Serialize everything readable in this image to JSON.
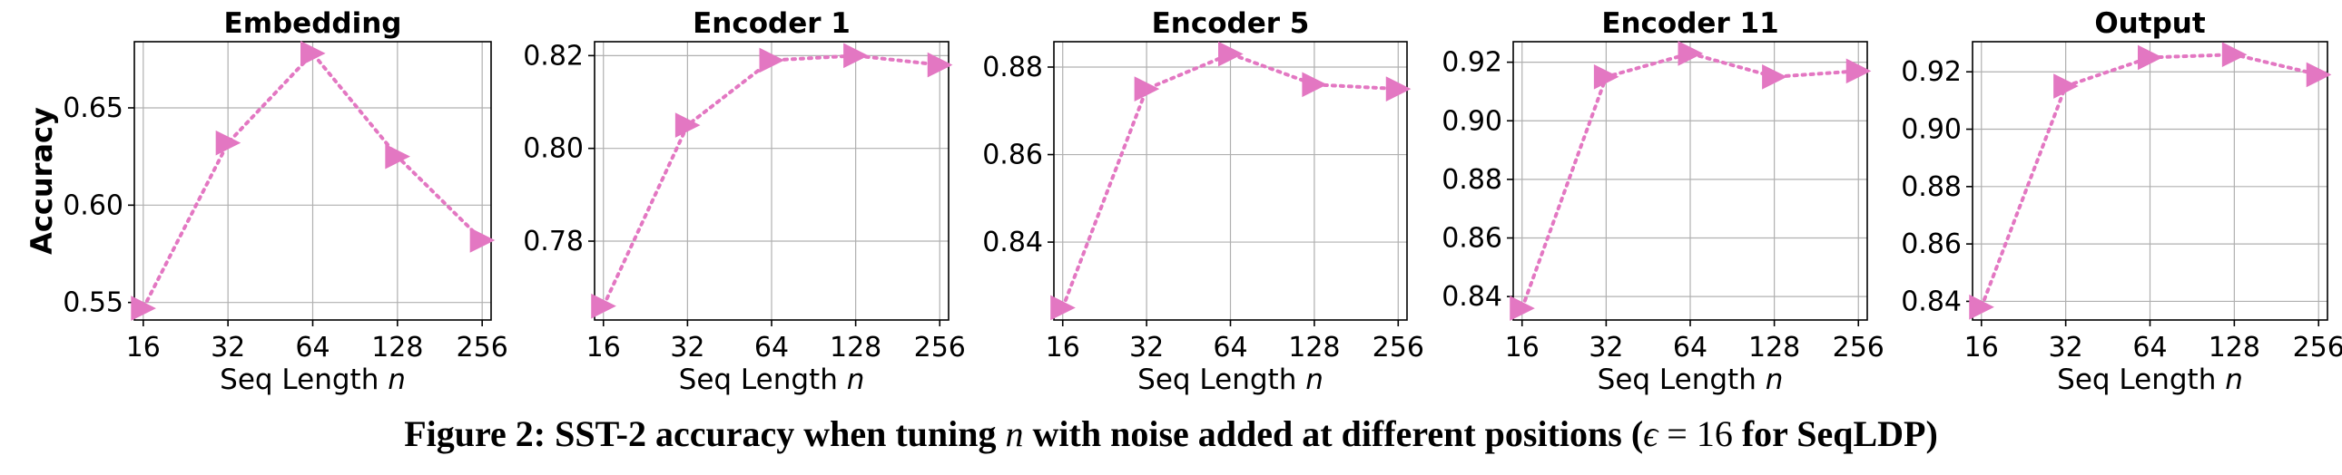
{
  "figure": {
    "caption": {
      "label": "Figure 2:",
      "text_a": "SST-2 accuracy when tuning",
      "var_n": "n",
      "text_b": "with noise added at different positions (",
      "epsilon": "ϵ",
      "eq": "=",
      "eps_value": "16",
      "text_c": "for SeqLDP)"
    },
    "marker_color": "#e377c2"
  },
  "chart_data": [
    {
      "type": "line",
      "title": "Embedding",
      "xlabel": "Seq Length n",
      "ylabel": "Accuracy",
      "x": [
        "16",
        "32",
        "64",
        "128",
        "256"
      ],
      "values": [
        0.547,
        0.632,
        0.678,
        0.625,
        0.582
      ],
      "ylim": [
        0.541,
        0.684
      ],
      "yticks": [
        0.55,
        0.6,
        0.65
      ],
      "ytick_labels": [
        "0.55",
        "0.60",
        "0.65"
      ],
      "grid": true,
      "marker": "triangle-right",
      "line_style": "dotted"
    },
    {
      "type": "line",
      "title": "Encoder 1",
      "xlabel": "Seq Length n",
      "ylabel": "",
      "x": [
        "16",
        "32",
        "64",
        "128",
        "256"
      ],
      "values": [
        0.766,
        0.805,
        0.819,
        0.82,
        0.818
      ],
      "ylim": [
        0.763,
        0.823
      ],
      "yticks": [
        0.78,
        0.8,
        0.82
      ],
      "ytick_labels": [
        "0.78",
        "0.80",
        "0.82"
      ],
      "grid": true,
      "marker": "triangle-right",
      "line_style": "dotted"
    },
    {
      "type": "line",
      "title": "Encoder 5",
      "xlabel": "Seq Length n",
      "ylabel": "",
      "x": [
        "16",
        "32",
        "64",
        "128",
        "256"
      ],
      "values": [
        0.825,
        0.875,
        0.883,
        0.876,
        0.875
      ],
      "ylim": [
        0.8222,
        0.8858
      ],
      "yticks": [
        0.84,
        0.86,
        0.88
      ],
      "ytick_labels": [
        "0.84",
        "0.86",
        "0.88"
      ],
      "grid": true,
      "marker": "triangle-right",
      "line_style": "dotted"
    },
    {
      "type": "line",
      "title": "Encoder 11",
      "xlabel": "Seq Length n",
      "ylabel": "",
      "x": [
        "16",
        "32",
        "64",
        "128",
        "256"
      ],
      "values": [
        0.836,
        0.915,
        0.923,
        0.915,
        0.917
      ],
      "ylim": [
        0.832,
        0.927
      ],
      "yticks": [
        0.84,
        0.86,
        0.88,
        0.9,
        0.92
      ],
      "ytick_labels": [
        "0.84",
        "0.86",
        "0.88",
        "0.90",
        "0.92"
      ],
      "grid": true,
      "marker": "triangle-right",
      "line_style": "dotted"
    },
    {
      "type": "line",
      "title": "Output",
      "xlabel": "Seq Length n",
      "ylabel": "",
      "x": [
        "16",
        "32",
        "64",
        "128",
        "256"
      ],
      "values": [
        0.838,
        0.915,
        0.925,
        0.926,
        0.919
      ],
      "ylim": [
        0.8335,
        0.9305
      ],
      "yticks": [
        0.84,
        0.86,
        0.88,
        0.9,
        0.92
      ],
      "ytick_labels": [
        "0.84",
        "0.86",
        "0.88",
        "0.90",
        "0.92"
      ],
      "grid": true,
      "marker": "triangle-right",
      "line_style": "dotted"
    }
  ]
}
